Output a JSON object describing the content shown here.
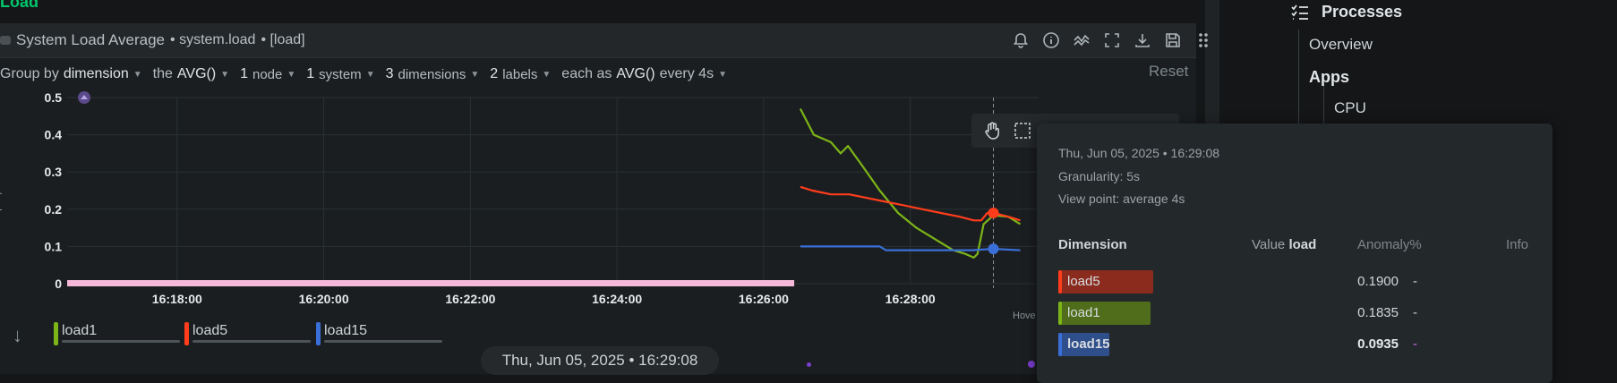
{
  "section": {
    "title": "Load"
  },
  "card": {
    "title": "System Load Average",
    "context": "• system.load",
    "type": "• [load]",
    "toolbar_icons": [
      "bell-icon",
      "info-icon",
      "anomaly-icon",
      "fullscreen-icon",
      "download-icon",
      "save-icon",
      "drag-handle-icon"
    ]
  },
  "filters": {
    "group_by_prefix": "Group by",
    "group_by_value": "dimension",
    "agg_prefix": "the",
    "agg_value": "AVG()",
    "nodes": "1",
    "nodes_label": "node",
    "systems": "1",
    "systems_label": "system",
    "dimensions": "3",
    "dimensions_label": "dimensions",
    "labels": "2",
    "labels_label": "labels",
    "each_prefix": "each as",
    "each_value": "AVG()",
    "every": "every 4s",
    "reset": "Reset"
  },
  "chart_data": {
    "type": "line",
    "y_ticks": [
      "0.5",
      "0.4",
      "0.3",
      "0.2",
      "0.1",
      "0"
    ],
    "ylim": [
      0,
      0.5
    ],
    "x_ticks": [
      "16:18:00",
      "16:20:00",
      "16:22:00",
      "16:24:00",
      "16:26:00",
      "16:28:00"
    ],
    "xlim": [
      "16:16:30",
      "16:29:45"
    ],
    "hover_time": "16:29:08",
    "grid": true,
    "colors": {
      "load1": "#7cb518",
      "load5": "#ff3d1c",
      "load15": "#3a6fd8",
      "nodata": "#f4b8d8"
    },
    "series": [
      {
        "name": "load1",
        "points": [
          [
            "16:26:30",
            0.47
          ],
          [
            "16:26:41",
            0.4
          ],
          [
            "16:26:55",
            0.38
          ],
          [
            "16:27:03",
            0.35
          ],
          [
            "16:27:09",
            0.37
          ],
          [
            "16:27:20",
            0.32
          ],
          [
            "16:27:35",
            0.25
          ],
          [
            "16:27:50",
            0.19
          ],
          [
            "16:28:05",
            0.15
          ],
          [
            "16:28:20",
            0.12
          ],
          [
            "16:28:35",
            0.09
          ],
          [
            "16:28:45",
            0.08
          ],
          [
            "16:28:52",
            0.07
          ],
          [
            "16:28:55",
            0.08
          ],
          [
            "16:29:00",
            0.16
          ],
          [
            "16:29:08",
            0.1835
          ],
          [
            "16:29:20",
            0.18
          ],
          [
            "16:29:30",
            0.16
          ]
        ]
      },
      {
        "name": "load5",
        "points": [
          [
            "16:26:30",
            0.26
          ],
          [
            "16:26:40",
            0.25
          ],
          [
            "16:26:55",
            0.24
          ],
          [
            "16:27:10",
            0.24
          ],
          [
            "16:27:25",
            0.23
          ],
          [
            "16:27:40",
            0.22
          ],
          [
            "16:27:55",
            0.21
          ],
          [
            "16:28:10",
            0.2
          ],
          [
            "16:28:25",
            0.19
          ],
          [
            "16:28:40",
            0.18
          ],
          [
            "16:28:52",
            0.17
          ],
          [
            "16:28:58",
            0.17
          ],
          [
            "16:29:03",
            0.19
          ],
          [
            "16:29:08",
            0.19
          ],
          [
            "16:29:20",
            0.18
          ],
          [
            "16:29:30",
            0.17
          ]
        ]
      },
      {
        "name": "load15",
        "points": [
          [
            "16:26:30",
            0.1
          ],
          [
            "16:27:35",
            0.1
          ],
          [
            "16:27:40",
            0.09
          ],
          [
            "16:28:50",
            0.09
          ],
          [
            "16:29:08",
            0.0935
          ],
          [
            "16:29:30",
            0.09
          ]
        ]
      }
    ],
    "nodata_range": [
      "16:16:30",
      "16:26:25"
    ]
  },
  "legend": [
    {
      "name": "load1",
      "color": "#7cb518"
    },
    {
      "name": "load5",
      "color": "#ff3d1c"
    },
    {
      "name": "load15",
      "color": "#3a6fd8"
    }
  ],
  "timestamp_pill": "Thu, Jun 05, 2025 • 16:29:08",
  "hover_label": "Hove",
  "sidebar": {
    "processes": "Processes",
    "overview": "Overview",
    "apps": "Apps",
    "cpu": "CPU"
  },
  "tooltip": {
    "datetime": "Thu, Jun 05, 2025 • 16:29:08",
    "granularity": "Granularity: 5s",
    "view_point": "View point: average 4s",
    "col_dimension": "Dimension",
    "col_value_prefix": "Value",
    "col_value_unit": "load",
    "col_anomaly": "Anomaly%",
    "col_info": "Info",
    "rows": [
      {
        "name": "load5",
        "value": "0.1900",
        "anomaly": "-",
        "color": "#ff3d1c",
        "chip_bg": "#8a2b1e",
        "fill": 1.0
      },
      {
        "name": "load1",
        "value": "0.1835",
        "anomaly": "-",
        "color": "#7cb518",
        "chip_bg": "#4f6d1a",
        "fill": 0.97
      },
      {
        "name": "load15",
        "value": "0.0935",
        "anomaly": "-",
        "color": "#3a6fd8",
        "chip_bg": "#2f4f8c",
        "fill": 0.49
      }
    ]
  }
}
